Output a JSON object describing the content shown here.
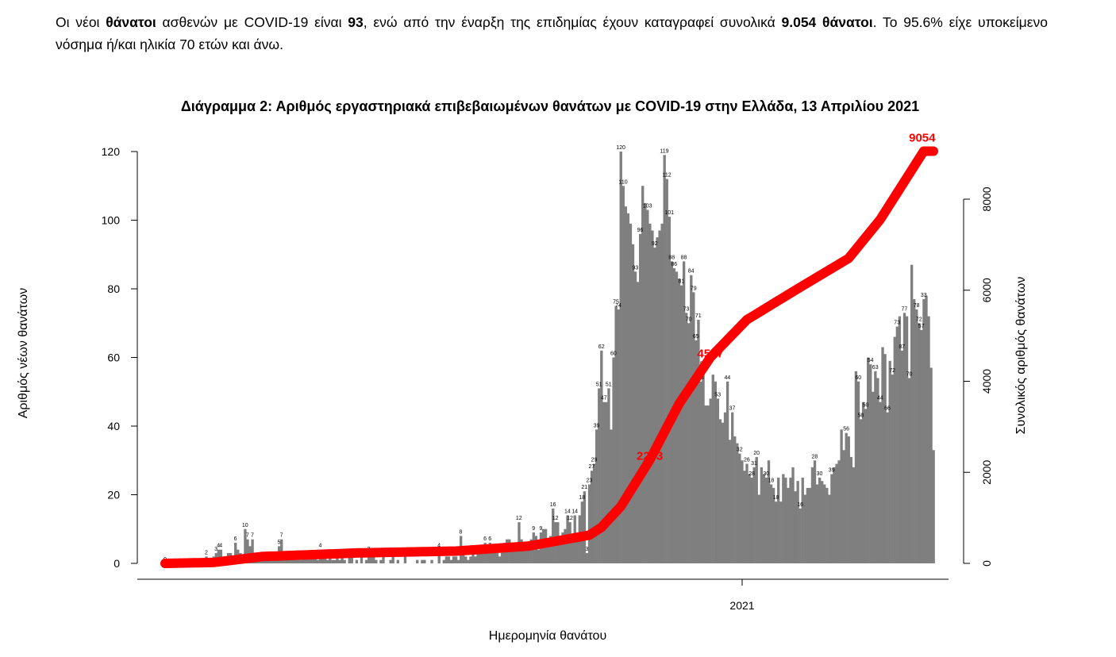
{
  "intro": {
    "p1": "Οι νέοι ",
    "b1": "θάνατοι",
    "p2": " ασθενών με COVID-19 είναι ",
    "b2": "93",
    "p3": ", ενώ από την έναρξη της επιδημίας έχουν καταγραφεί συνολικά ",
    "b3": "9.054 θάνατοι",
    "p4": ".  Το 95.6% είχε υποκείμενο νόσημα ή/και ηλικία 70 ετών και άνω."
  },
  "colors": {
    "bars": "#7f7f7f",
    "cumulative": "#ff0000",
    "axis": "#000000"
  },
  "chart_data": {
    "type": "bar",
    "title": "Διάγραμμα 2: Αριθμός εργαστηριακά επιβεβαιωμένων θανάτων με COVID-19 στην Ελλάδα, 13 Απριλίου 2021",
    "xlabel": "Ημερομηνία θανάτου",
    "ylabel": "Αριθμός νέων θανάτων",
    "y2label": "Συνολικός αριθμός θανάτων",
    "ylim": [
      0,
      120
    ],
    "y2lim": [
      0,
      8000
    ],
    "yticks": [
      "0",
      "20",
      "40",
      "60",
      "80",
      "100",
      "120"
    ],
    "y2ticks": [
      "0",
      "2000",
      "4000",
      "6000",
      "8000"
    ],
    "xticks": [
      "2021"
    ],
    "grid": false,
    "series": [
      {
        "type": "bar",
        "values": [
          0,
          0,
          0,
          0,
          0,
          0,
          0,
          0,
          0,
          0,
          0,
          0,
          0,
          0,
          0,
          1,
          0,
          2,
          0,
          1,
          2,
          3,
          4,
          4,
          2,
          2,
          3,
          3,
          2,
          6,
          4,
          3,
          2,
          10,
          7,
          5,
          7,
          3,
          2,
          2,
          1,
          3,
          2,
          2,
          3,
          1,
          2,
          5,
          7,
          3,
          2,
          2,
          2,
          2,
          2,
          2,
          1,
          2,
          2,
          2,
          2,
          3,
          2,
          1,
          4,
          2,
          2,
          1,
          2,
          1,
          1,
          2,
          1,
          2,
          1,
          0,
          2,
          2,
          0,
          1,
          0,
          2,
          0,
          1,
          3,
          2,
          2,
          1,
          0,
          1,
          2,
          0,
          0,
          1,
          2,
          0,
          1,
          0,
          0,
          2,
          0,
          0,
          0,
          0,
          1,
          0,
          1,
          1,
          0,
          0,
          1,
          0,
          0,
          4,
          0,
          1,
          2,
          2,
          1,
          2,
          2,
          1,
          8,
          3,
          2,
          1,
          2,
          3,
          2,
          4,
          3,
          4,
          6,
          5,
          6,
          4,
          3,
          3,
          2,
          4,
          6,
          7,
          7,
          5,
          4,
          6,
          12,
          7,
          6,
          5,
          4,
          7,
          9,
          8,
          4,
          9,
          10,
          10,
          6,
          8,
          16,
          12,
          12,
          8,
          9,
          10,
          14,
          12,
          7,
          14,
          8,
          14,
          18,
          21,
          3,
          23,
          27,
          29,
          39,
          51,
          62,
          47,
          47,
          51,
          39,
          60,
          75,
          74,
          120,
          110,
          104,
          102,
          99,
          93,
          85,
          82,
          96,
          110,
          105,
          103,
          99,
          97,
          92,
          95,
          97,
          99,
          119,
          112,
          101,
          88,
          86,
          85,
          83,
          81,
          88,
          73,
          70,
          84,
          79,
          65,
          71,
          53,
          57,
          46,
          46,
          48,
          55,
          53,
          48,
          42,
          41,
          44,
          53,
          36,
          44,
          37,
          35,
          32,
          30,
          27,
          29,
          26,
          25,
          28,
          31,
          20,
          28,
          26,
          25,
          30,
          23,
          22,
          18,
          25,
          18,
          26,
          25,
          22,
          25,
          28,
          21,
          24,
          16,
          25,
          20,
          22,
          22,
          28,
          30,
          23,
          25,
          24,
          23,
          22,
          20,
          26,
          28,
          29,
          30,
          39,
          33,
          38,
          37,
          31,
          28,
          56,
          53,
          42,
          47,
          45,
          60,
          58,
          50,
          56,
          54,
          47,
          63,
          61,
          44,
          59,
          55,
          66,
          69,
          72,
          62,
          73,
          72,
          54,
          87,
          77,
          74,
          70,
          68,
          77,
          78,
          72,
          57,
          33
        ],
        "labels": [
          {
            "i": 0,
            "v": "0"
          },
          {
            "i": 17,
            "v": "2"
          },
          {
            "i": 21,
            "v": "3"
          },
          {
            "i": 22,
            "v": "4"
          },
          {
            "i": 23,
            "v": "4"
          },
          {
            "i": 29,
            "v": "6"
          },
          {
            "i": 33,
            "v": "10"
          },
          {
            "i": 34,
            "v": "7"
          },
          {
            "i": 36,
            "v": "7"
          },
          {
            "i": 47,
            "v": "5"
          },
          {
            "i": 48,
            "v": "7"
          },
          {
            "i": 64,
            "v": "4"
          },
          {
            "i": 84,
            "v": "3"
          },
          {
            "i": 113,
            "v": "4"
          },
          {
            "i": 122,
            "v": "8"
          },
          {
            "i": 132,
            "v": "6"
          },
          {
            "i": 134,
            "v": "6"
          },
          {
            "i": 146,
            "v": "12"
          },
          {
            "i": 152,
            "v": "9"
          },
          {
            "i": 155,
            "v": "9"
          },
          {
            "i": 160,
            "v": "16"
          },
          {
            "i": 161,
            "v": "12"
          },
          {
            "i": 166,
            "v": "14"
          },
          {
            "i": 167,
            "v": "12"
          },
          {
            "i": 169,
            "v": "14"
          },
          {
            "i": 172,
            "v": "18"
          },
          {
            "i": 173,
            "v": "21"
          },
          {
            "i": 174,
            "v": "3"
          },
          {
            "i": 175,
            "v": "23"
          },
          {
            "i": 176,
            "v": "27"
          },
          {
            "i": 177,
            "v": "29"
          },
          {
            "i": 178,
            "v": "39"
          },
          {
            "i": 179,
            "v": "51"
          },
          {
            "i": 180,
            "v": "62"
          },
          {
            "i": 181,
            "v": "47"
          },
          {
            "i": 183,
            "v": "51"
          },
          {
            "i": 185,
            "v": "60"
          },
          {
            "i": 186,
            "v": "75"
          },
          {
            "i": 187,
            "v": "74"
          },
          {
            "i": 188,
            "v": "120"
          },
          {
            "i": 189,
            "v": "110"
          },
          {
            "i": 194,
            "v": "93"
          },
          {
            "i": 196,
            "v": "96"
          },
          {
            "i": 199,
            "v": "103"
          },
          {
            "i": 202,
            "v": "92"
          },
          {
            "i": 206,
            "v": "119"
          },
          {
            "i": 207,
            "v": "112"
          },
          {
            "i": 208,
            "v": "101"
          },
          {
            "i": 209,
            "v": "88"
          },
          {
            "i": 210,
            "v": "86"
          },
          {
            "i": 213,
            "v": "81"
          },
          {
            "i": 214,
            "v": "88"
          },
          {
            "i": 215,
            "v": "73"
          },
          {
            "i": 216,
            "v": "70"
          },
          {
            "i": 217,
            "v": "84"
          },
          {
            "i": 218,
            "v": "79"
          },
          {
            "i": 219,
            "v": "65"
          },
          {
            "i": 220,
            "v": "71"
          },
          {
            "i": 221,
            "v": "53"
          },
          {
            "i": 222,
            "v": "57"
          },
          {
            "i": 228,
            "v": "53"
          },
          {
            "i": 232,
            "v": "44"
          },
          {
            "i": 234,
            "v": "37"
          },
          {
            "i": 237,
            "v": "32"
          },
          {
            "i": 240,
            "v": "26"
          },
          {
            "i": 242,
            "v": "28"
          },
          {
            "i": 243,
            "v": "31"
          },
          {
            "i": 244,
            "v": "20"
          },
          {
            "i": 248,
            "v": "30"
          },
          {
            "i": 250,
            "v": "18"
          },
          {
            "i": 252,
            "v": "18"
          },
          {
            "i": 262,
            "v": "16"
          },
          {
            "i": 268,
            "v": "28"
          },
          {
            "i": 270,
            "v": "30"
          },
          {
            "i": 275,
            "v": "39"
          },
          {
            "i": 281,
            "v": "56"
          },
          {
            "i": 286,
            "v": "60"
          },
          {
            "i": 287,
            "v": "58"
          },
          {
            "i": 289,
            "v": "50"
          },
          {
            "i": 291,
            "v": "54"
          },
          {
            "i": 293,
            "v": "63"
          },
          {
            "i": 295,
            "v": "44"
          },
          {
            "i": 298,
            "v": "66"
          },
          {
            "i": 300,
            "v": "72"
          },
          {
            "i": 302,
            "v": "73"
          },
          {
            "i": 304,
            "v": "87"
          },
          {
            "i": 305,
            "v": "77"
          },
          {
            "i": 307,
            "v": "70"
          },
          {
            "i": 310,
            "v": "78"
          },
          {
            "i": 311,
            "v": "72"
          },
          {
            "i": 312,
            "v": "57"
          },
          {
            "i": 313,
            "v": "33"
          }
        ]
      },
      {
        "type": "line",
        "axis": "right",
        "knots": [
          [
            0,
            0
          ],
          [
            20,
            20
          ],
          [
            40,
            150
          ],
          [
            80,
            230
          ],
          [
            120,
            270
          ],
          [
            150,
            380
          ],
          [
            175,
            620
          ],
          [
            180,
            790
          ],
          [
            188,
            1250
          ],
          [
            200,
            2273
          ],
          [
            212,
            3500
          ],
          [
            225,
            4527
          ],
          [
            240,
            5350
          ],
          [
            260,
            6000
          ],
          [
            282,
            6700
          ],
          [
            295,
            7550
          ],
          [
            313,
            9054
          ]
        ],
        "labels": [
          {
            "i": 200,
            "v": "2273"
          },
          {
            "i": 225,
            "v": "4527"
          },
          {
            "i": 313,
            "v": "9054"
          }
        ]
      }
    ]
  }
}
